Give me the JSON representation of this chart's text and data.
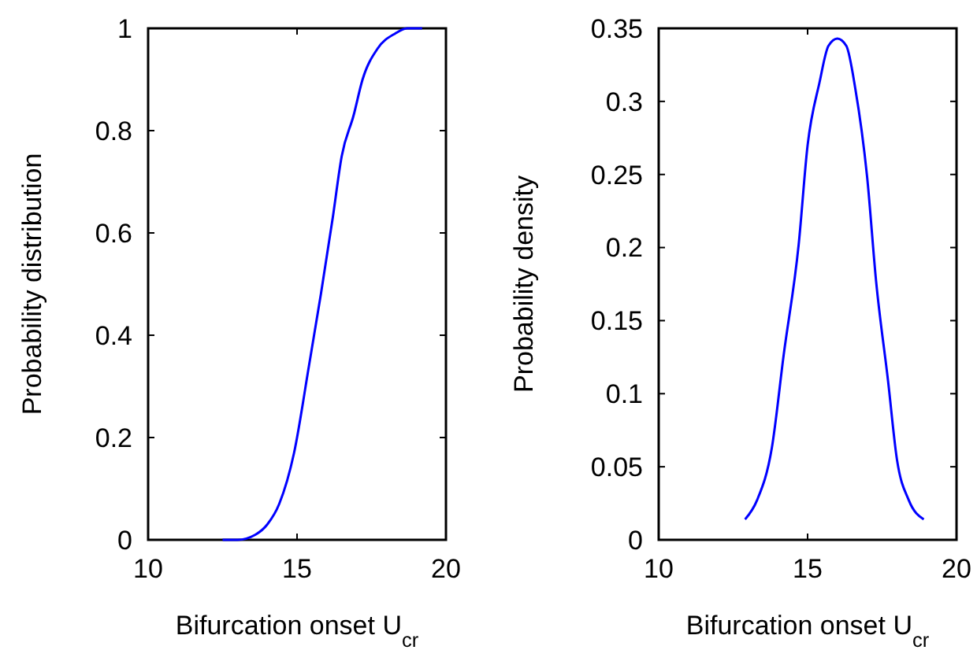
{
  "chart_data": [
    {
      "type": "line",
      "xlabel": "Bifurcation onset  U$_{cr}$",
      "ylabel": "Probability distribution",
      "xlim": [
        10,
        20
      ],
      "ylim": [
        0,
        1
      ],
      "xticks": [
        10,
        15,
        20
      ],
      "yticks": [
        0,
        0.2,
        0.4,
        0.6,
        0.8,
        1
      ],
      "grid": false,
      "marker": "none",
      "line_style": "solid",
      "series": [
        {
          "color": "#0000ff",
          "x": [
            12.5,
            13.0,
            13.6,
            14.0,
            14.4,
            14.9,
            15.4,
            15.8,
            16.2,
            16.5,
            16.9,
            17.2,
            17.7,
            18.3,
            18.7,
            19.2
          ],
          "values": [
            0,
            0.0,
            0.01,
            0.03,
            0.07,
            0.17,
            0.34,
            0.48,
            0.63,
            0.75,
            0.83,
            0.9,
            0.96,
            0.99,
            1.0,
            1
          ]
        }
      ]
    },
    {
      "type": "line",
      "xlabel": "Bifurcation onset  U$_{cr}$",
      "ylabel": "Probability density",
      "xlim": [
        10,
        20
      ],
      "ylim": [
        0,
        0.35
      ],
      "xticks": [
        10,
        15,
        20
      ],
      "yticks": [
        0,
        0.05,
        0.1,
        0.15,
        0.2,
        0.25,
        0.3,
        0.35
      ],
      "grid": false,
      "marker": "none",
      "line_style": "solid",
      "series": [
        {
          "color": "#0000ff",
          "x": [
            12.9,
            13.3,
            13.8,
            14.2,
            14.7,
            15.0,
            15.4,
            15.7,
            16.0,
            16.3,
            16.6,
            17.0,
            17.3,
            17.7,
            18.0,
            18.4,
            18.9
          ],
          "values": [
            0.014,
            0.027,
            0.063,
            0.127,
            0.202,
            0.27,
            0.313,
            0.338,
            0.343,
            0.338,
            0.309,
            0.248,
            0.177,
            0.109,
            0.055,
            0.027,
            0.014
          ]
        }
      ]
    }
  ]
}
